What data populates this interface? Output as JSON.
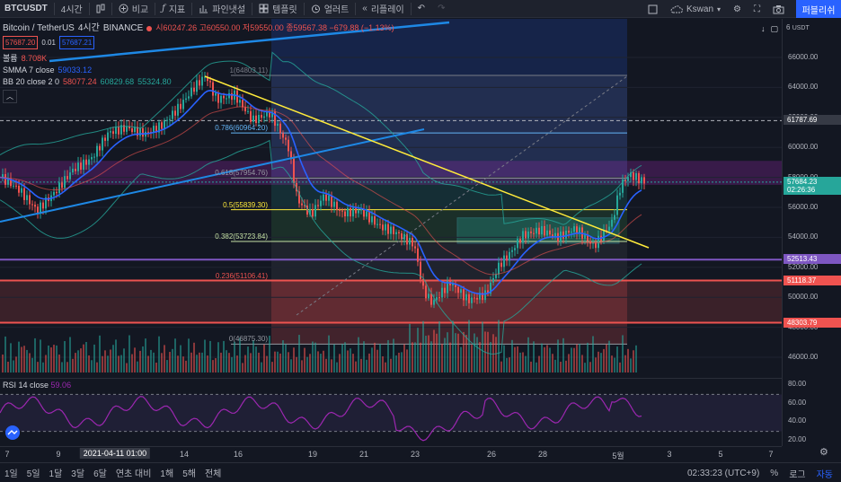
{
  "toolbar": {
    "symbol": "BTCUSDT",
    "interval": "4시간",
    "compare": "비교",
    "indicators": "지표",
    "pine_editor": "파인냇설",
    "template": "템플릿",
    "alert": "얼러트",
    "replay": "리플레이",
    "layout_name": "Kswan",
    "publish": "퍼블리쉬"
  },
  "legend": {
    "title": "Bitcoin / TetherUS",
    "interval": "4시간",
    "exchange": "BINANCE",
    "ohlc": "시60247.26 고60550.00 저59550.00 종59567.38 −679.88 (−1.13%)",
    "bid": "57687.20",
    "spread": "0.01",
    "ask": "57687.21",
    "volume_label": "볼륨",
    "volume_value": "8.708K",
    "smma_label": "SMMA 7 close",
    "smma_value": "59033.12",
    "bb_label": "BB 20 close 2 0",
    "bb_values": [
      "58077.24",
      "60829.68",
      "55324.80"
    ]
  },
  "fib_levels": [
    {
      "label": "1(64803.11)",
      "price": 64803.11,
      "color": "#787b86"
    },
    {
      "label": "0.786(60964.20)",
      "price": 60964.2,
      "color": "#64b5f6"
    },
    {
      "label": "0.618(57954.76)",
      "price": 57954.76,
      "color": "#9598a1"
    },
    {
      "label": "0.5(55839.30)",
      "price": 55839.3,
      "color": "#ffeb3b"
    },
    {
      "label": "0.382(53723.84)",
      "price": 53723.84,
      "color": "#c5e1a5"
    },
    {
      "label": "0.236(51106.41)",
      "price": 51106.41,
      "color": "#ef5350"
    },
    {
      "label": "0(46875.30)",
      "price": 46875.3,
      "color": "#9598a1"
    }
  ],
  "price_axis": {
    "currency": "USDT",
    "ticks": [
      "66000.00",
      "64000.00",
      "62000.00",
      "60000.00",
      "58000.00",
      "56000.00",
      "54000.00",
      "52000.00",
      "50000.00",
      "48000.00",
      "46000.00"
    ],
    "top_tick": "6",
    "crosshair_label": "61787.69",
    "current_price": "57684.23",
    "countdown": "02:26:36",
    "purple_line": "52513.43",
    "red_line_1": "51118.37",
    "red_line_2": "48303.79"
  },
  "rsi": {
    "label": "RSI 14 close",
    "value": "59.06",
    "ticks": [
      "80.00",
      "60.00",
      "40.00",
      "20.00"
    ]
  },
  "time_axis": {
    "ticks": [
      "7",
      "9",
      "14",
      "16",
      "19",
      "21",
      "23",
      "26",
      "28",
      "5월",
      "3",
      "5",
      "7"
    ],
    "cursor_label": "2021-04-11   01:00"
  },
  "bottom": {
    "ranges": [
      "1일",
      "5일",
      "1달",
      "3달",
      "6달",
      "연초 대비",
      "1해",
      "5해",
      "전체"
    ],
    "clock": "02:33:23 (UTC+9)",
    "percent": "%",
    "log": "로그",
    "auto": "자동"
  },
  "colors": {
    "bg": "#131722",
    "up": "#26a69a",
    "down": "#ef5350",
    "accent": "#2962ff"
  }
}
